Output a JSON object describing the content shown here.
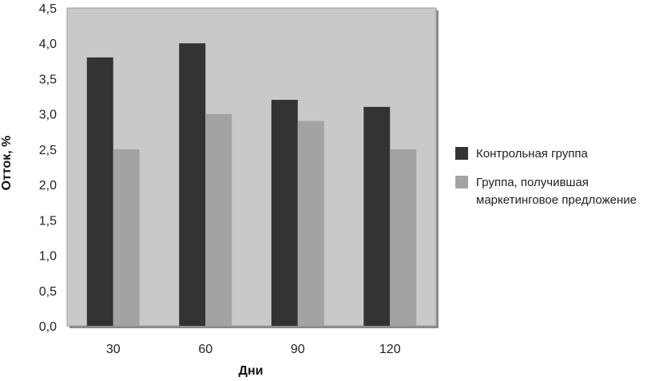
{
  "chart_data": {
    "type": "bar",
    "categories": [
      "30",
      "60",
      "90",
      "120"
    ],
    "series": [
      {
        "name": "Контрольная группа",
        "values": [
          3.8,
          4.0,
          3.2,
          3.1
        ],
        "color": "#333333"
      },
      {
        "name": "Группа, получившая маркетинговое предложение",
        "values": [
          2.5,
          3.0,
          2.9,
          2.5
        ],
        "color": "#a3a3a3"
      }
    ],
    "title": "",
    "xlabel": "Дни",
    "ylabel": "Отток, %",
    "ylim": [
      0,
      4.5
    ],
    "yticks": [
      "0,0",
      "0,5",
      "1,0",
      "1,5",
      "2,0",
      "2,5",
      "3,0",
      "3,5",
      "4,0",
      "4,5"
    ],
    "grid": false,
    "legend_position": "right",
    "legend": [
      {
        "lines": [
          "Контрольная группа"
        ]
      },
      {
        "lines": [
          "Группа, получившая",
          "маркетинговое предложение"
        ]
      }
    ],
    "plot_background": "#c9c9c9"
  }
}
